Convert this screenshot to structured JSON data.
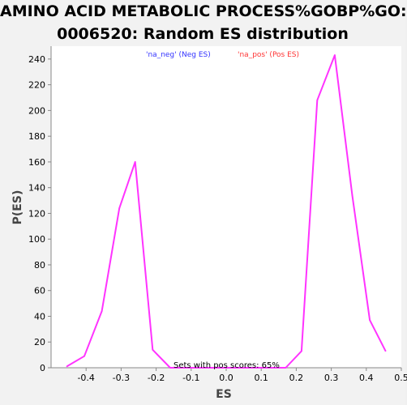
{
  "chart": {
    "title_line1": "AMINO ACID METABOLIC PROCESS%GOBP%GO:",
    "title_line2": "0006520: Random ES distribution",
    "xlabel": "ES",
    "ylabel": "P(ES)",
    "legend_neg": "'na_neg' (Neg ES)",
    "legend_pos": "'na_pos' (Pos ES)",
    "annotation": "Sets with pos scores: 65%",
    "colors": {
      "line": "#ff33ff",
      "legend_neg": "#3333ff",
      "legend_pos": "#ff3333",
      "plot_bg": "#ffffff",
      "axis": "#888888",
      "tick_text": "#000000"
    }
  },
  "chart_data": {
    "type": "line",
    "title": "AMINO ACID METABOLIC PROCESS%GOBP%GO: 0006520: Random ES distribution",
    "xlabel": "ES",
    "ylabel": "P(ES)",
    "xlim": [
      -0.5,
      0.5
    ],
    "ylim": [
      0,
      250
    ],
    "xticks": [
      -0.4,
      -0.3,
      -0.2,
      -0.1,
      0.0,
      0.1,
      0.2,
      0.3,
      0.4,
      0.5
    ],
    "xtick_labels": [
      "-0.4",
      "-0.3",
      "-0.2",
      "-0.1",
      "0.0",
      "0.1",
      "0.2",
      "0.3",
      "0.4",
      "0.5"
    ],
    "yticks": [
      0,
      20,
      40,
      60,
      80,
      100,
      120,
      140,
      160,
      180,
      200,
      220,
      240
    ],
    "ytick_labels": [
      "0",
      "20",
      "40",
      "60",
      "80",
      "100",
      "120",
      "140",
      "160",
      "180",
      "200",
      "220",
      "240"
    ],
    "legend": [
      "'na_neg' (Neg ES)",
      "'na_pos' (Pos ES)"
    ],
    "legend_placement": "top",
    "grid": false,
    "series": [
      {
        "x": [
          -0.455,
          -0.405,
          -0.355,
          -0.305,
          -0.26,
          -0.21,
          -0.16,
          -0.11,
          -0.06,
          -0.01,
          0.04,
          0.09,
          0.13,
          0.17,
          0.215,
          0.26,
          0.31,
          0.36,
          0.41,
          0.455
        ],
        "values": [
          1,
          9,
          44,
          124,
          160,
          14,
          0,
          0,
          0,
          0,
          0,
          0,
          0,
          0,
          13,
          208,
          243,
          134,
          37,
          13
        ]
      }
    ]
  }
}
